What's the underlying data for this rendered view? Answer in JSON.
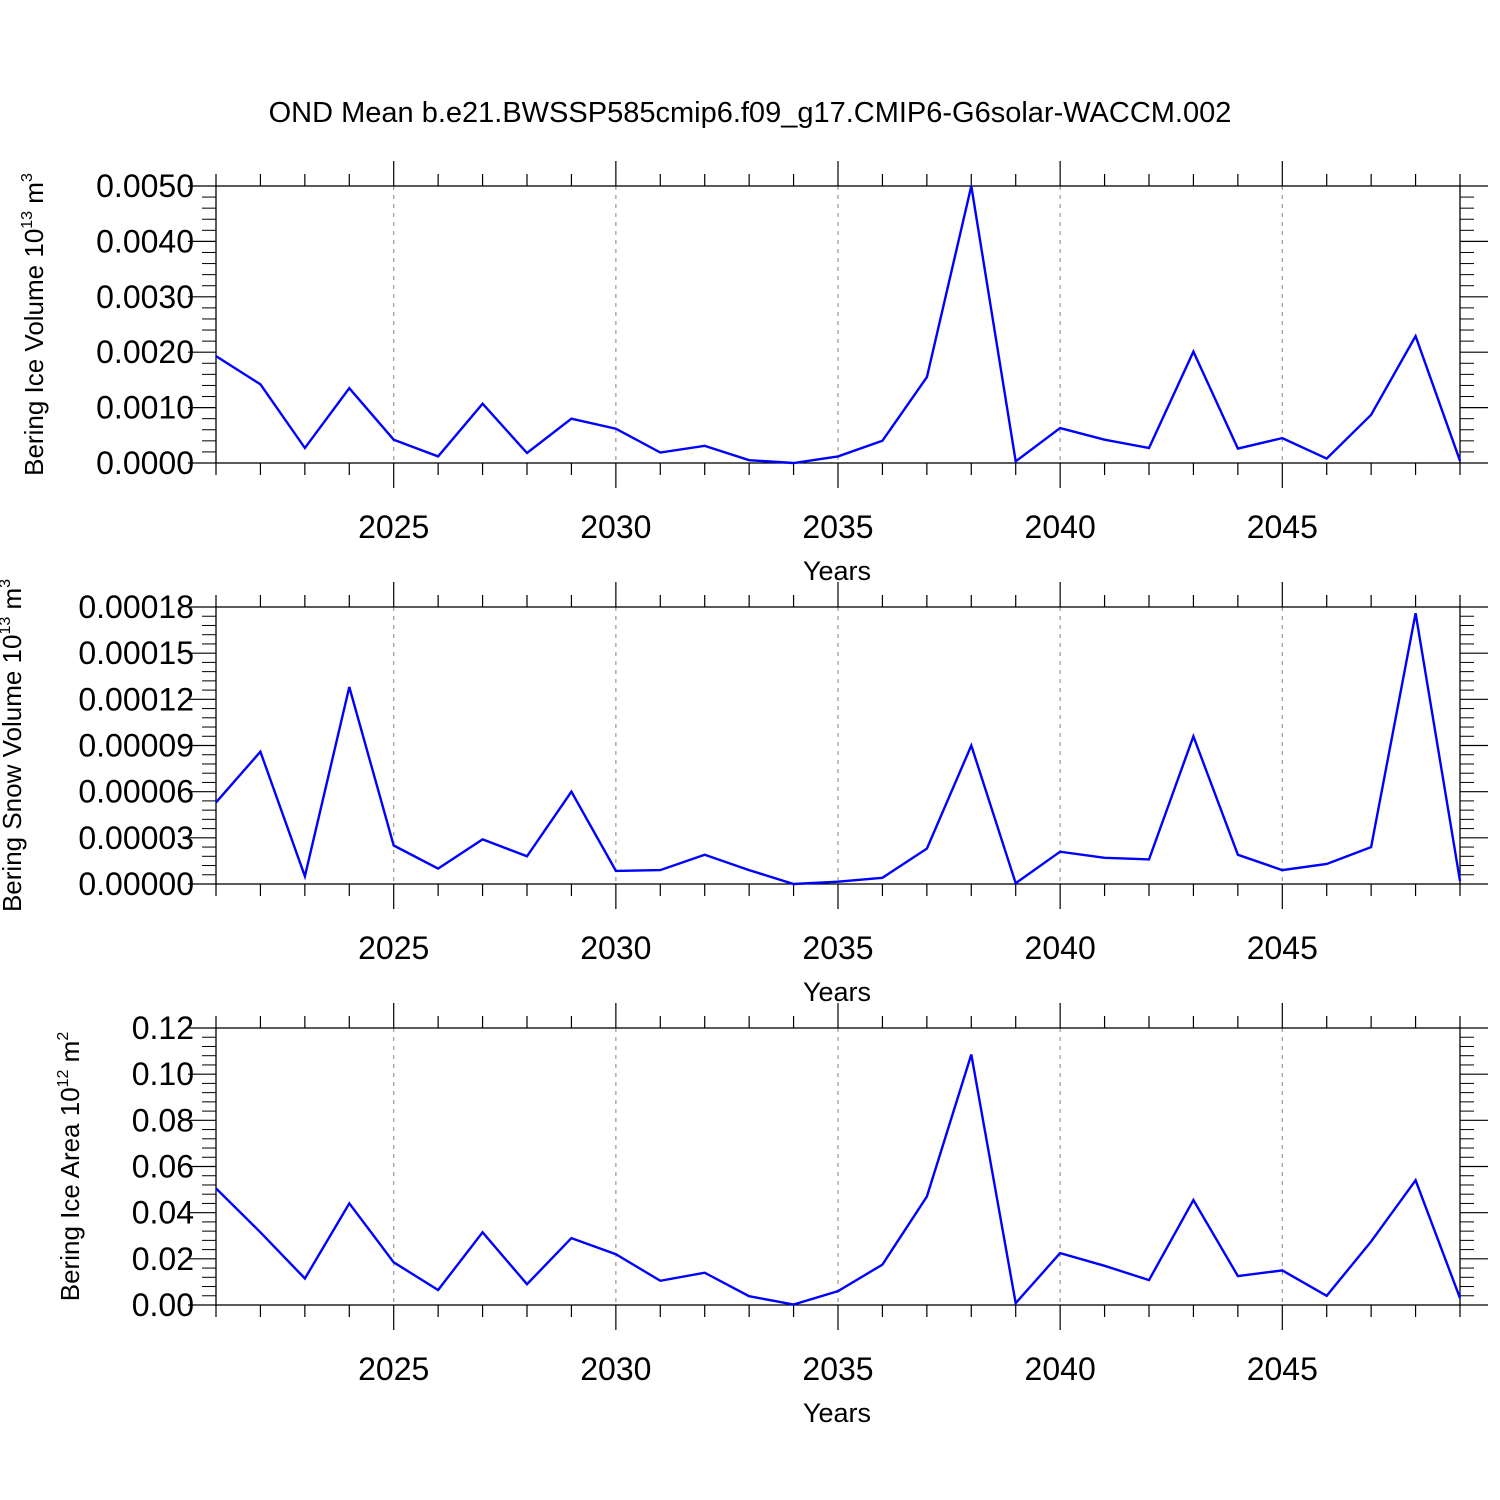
{
  "figure": {
    "title": "OND Mean b.e21.BWSSP585cmip6.f09_g17.CMIP6-G6solar-WACCM.002",
    "line_color": "#0000ff",
    "grid_color": "#999999"
  },
  "chart_data": [
    {
      "type": "line",
      "title": "OND Mean b.e21.BWSSP585cmip6.f09_g17.CMIP6-G6solar-WACCM.002",
      "xlabel": "Years",
      "ylabel": {
        "text": "Bering Ice Volume 10",
        "exp": "13",
        "unit": " m",
        "unit_exp": "3"
      },
      "x_ticks": [
        "2025",
        "2030",
        "2035",
        "2040",
        "2045"
      ],
      "y_ticks": [
        "0.0000",
        "0.0010",
        "0.0020",
        "0.0030",
        "0.0040",
        "0.0050"
      ],
      "xlim": [
        2021,
        2049
      ],
      "ylim": [
        0,
        0.005
      ],
      "grid": "vertical dashed at major x ticks",
      "x": [
        2021,
        2022,
        2023,
        2024,
        2025,
        2026,
        2027,
        2028,
        2029,
        2030,
        2031,
        2032,
        2033,
        2034,
        2035,
        2036,
        2037,
        2038,
        2039,
        2040,
        2041,
        2042,
        2043,
        2044,
        2045,
        2046,
        2047,
        2048,
        2049
      ],
      "series": [
        {
          "values": [
            0.00193,
            0.00142,
            0.00027,
            0.00135,
            0.00042,
            0.00012,
            0.00107,
            0.00018,
            0.0008,
            0.00062,
            0.00019,
            0.00031,
            5e-05,
            0.0,
            0.00012,
            0.0004,
            0.00155,
            0.005,
            3e-05,
            0.00063,
            0.00042,
            0.00027,
            0.00201,
            0.00026,
            0.00045,
            8e-05,
            0.00087,
            0.00229,
            4e-05
          ]
        }
      ]
    },
    {
      "type": "line",
      "xlabel": "Years",
      "ylabel": {
        "text": "Bering Snow Volume 10",
        "exp": "13",
        "unit": " m",
        "unit_exp": "3"
      },
      "x_ticks": [
        "2025",
        "2030",
        "2035",
        "2040",
        "2045"
      ],
      "y_ticks": [
        "0.00000",
        "0.00003",
        "0.00006",
        "0.00009",
        "0.00012",
        "0.00015",
        "0.00018"
      ],
      "xlim": [
        2021,
        2049
      ],
      "ylim": [
        0,
        0.00018
      ],
      "grid": "vertical dashed at major x ticks",
      "x": [
        2021,
        2022,
        2023,
        2024,
        2025,
        2026,
        2027,
        2028,
        2029,
        2030,
        2031,
        2032,
        2033,
        2034,
        2035,
        2036,
        2037,
        2038,
        2039,
        2040,
        2041,
        2042,
        2043,
        2044,
        2045,
        2046,
        2047,
        2048,
        2049
      ],
      "series": [
        {
          "values": [
            5.3e-05,
            8.6e-05,
            5e-06,
            0.000128,
            2.5e-05,
            1e-05,
            2.9e-05,
            1.8e-05,
            6e-05,
            8.5e-06,
            9e-06,
            1.9e-05,
            9e-06,
            0.0,
            1.5e-06,
            4e-06,
            2.3e-05,
            9e-05,
            5e-07,
            2.1e-05,
            1.7e-05,
            1.6e-05,
            9.6e-05,
            1.9e-05,
            9e-06,
            1.3e-05,
            2.4e-05,
            0.000176,
            2e-06
          ]
        }
      ]
    },
    {
      "type": "line",
      "xlabel": "Years",
      "ylabel": {
        "text": "Bering Ice Area 10",
        "exp": "12",
        "unit": " m",
        "unit_exp": "2"
      },
      "x_ticks": [
        "2025",
        "2030",
        "2035",
        "2040",
        "2045"
      ],
      "y_ticks": [
        "0.00",
        "0.02",
        "0.04",
        "0.06",
        "0.08",
        "0.10",
        "0.12"
      ],
      "xlim": [
        2021,
        2049
      ],
      "ylim": [
        0,
        0.12
      ],
      "grid": "vertical dashed at major x ticks",
      "x": [
        2021,
        2022,
        2023,
        2024,
        2025,
        2026,
        2027,
        2028,
        2029,
        2030,
        2031,
        2032,
        2033,
        2034,
        2035,
        2036,
        2037,
        2038,
        2039,
        2040,
        2041,
        2042,
        2043,
        2044,
        2045,
        2046,
        2047,
        2048,
        2049
      ],
      "series": [
        {
          "values": [
            0.0505,
            0.0315,
            0.0115,
            0.044,
            0.0185,
            0.0065,
            0.0315,
            0.009,
            0.029,
            0.022,
            0.0105,
            0.014,
            0.0038,
            0.0002,
            0.006,
            0.0175,
            0.047,
            0.1085,
            0.0008,
            0.0225,
            0.017,
            0.0108,
            0.0455,
            0.0125,
            0.015,
            0.004,
            0.0275,
            0.054,
            0.003
          ]
        }
      ]
    }
  ]
}
